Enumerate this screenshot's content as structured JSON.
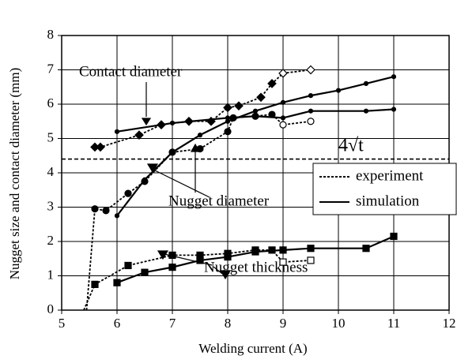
{
  "chart_data": {
    "type": "line",
    "x_label": "Welding current (A)",
    "y_label": "Nugget size and contact diameter (mm)",
    "xlim": [
      5,
      12
    ],
    "xticks": [
      5,
      6,
      7,
      8,
      9,
      10,
      11,
      12
    ],
    "ylim": [
      0,
      8
    ],
    "yticks": [
      0,
      1,
      2,
      3,
      4,
      5,
      6,
      7,
      8
    ],
    "grid": true,
    "annotations": [
      "Contact diameter",
      "Nugget diameter",
      "Nugget thickness"
    ],
    "reference_line": {
      "value": 4.4,
      "label": "4√t"
    },
    "legend": [
      {
        "label": "experiment",
        "dash": "dotted"
      },
      {
        "label": "simulation",
        "dash": "solid"
      }
    ],
    "series": [
      {
        "dash": "dotted",
        "marker": "diamond",
        "color": "#000000",
        "x": [
          5.6,
          5.7,
          6.4,
          6.8,
          7.3,
          7.7,
          8.0,
          8.2,
          8.6,
          8.8,
          9.0,
          9.5
        ],
        "values": [
          4.75,
          4.75,
          5.1,
          5.4,
          5.5,
          5.5,
          5.9,
          5.95,
          6.2,
          6.6,
          6.9,
          7.0
        ],
        "filled": [
          true,
          true,
          true,
          true,
          true,
          true,
          true,
          true,
          true,
          true,
          false,
          false
        ]
      },
      {
        "dash": "dotted",
        "marker": "circle",
        "color": "#000000",
        "x": [
          5.45,
          5.6,
          5.8,
          6.2,
          6.5,
          7.0,
          7.5,
          8.0,
          8.1,
          8.5,
          8.8,
          9.0,
          9.5
        ],
        "values": [
          0,
          2.95,
          2.9,
          3.4,
          3.75,
          4.6,
          4.7,
          5.2,
          5.6,
          5.65,
          5.7,
          5.4,
          5.5
        ],
        "filled": [
          null,
          true,
          true,
          true,
          true,
          true,
          true,
          true,
          true,
          true,
          true,
          false,
          false
        ]
      },
      {
        "dash": "dotted",
        "marker": "square",
        "color": "#000000",
        "x": [
          5.4,
          5.6,
          6.2,
          7.0,
          7.5,
          8.0,
          8.5,
          8.8,
          9.0,
          9.5
        ],
        "values": [
          0,
          0.75,
          1.3,
          1.6,
          1.6,
          1.65,
          1.75,
          1.75,
          1.4,
          1.45
        ],
        "filled": [
          null,
          true,
          true,
          true,
          true,
          true,
          true,
          true,
          false,
          false
        ]
      },
      {
        "dash": "solid",
        "marker": "dot",
        "color": "#000000",
        "x": [
          6,
          6.5,
          7,
          7.5,
          8,
          8.5,
          9,
          9.5,
          10,
          10.5,
          11
        ],
        "values": [
          2.75,
          3.8,
          4.6,
          5.1,
          5.5,
          5.8,
          6.05,
          6.25,
          6.4,
          6.6,
          6.8
        ]
      },
      {
        "dash": "solid",
        "marker": "dot",
        "color": "#000000",
        "x": [
          6,
          7,
          8,
          8.5,
          9,
          9.5,
          10.5,
          11
        ],
        "values": [
          5.2,
          5.45,
          5.6,
          5.65,
          5.6,
          5.8,
          5.8,
          5.85
        ]
      },
      {
        "dash": "solid",
        "marker": "square",
        "color": "#000000",
        "x": [
          6,
          6.5,
          7,
          7.5,
          8,
          8.5,
          9,
          9.5,
          10.5,
          11
        ],
        "values": [
          0.8,
          1.1,
          1.25,
          1.45,
          1.55,
          1.7,
          1.75,
          1.8,
          1.8,
          2.15
        ]
      }
    ]
  }
}
